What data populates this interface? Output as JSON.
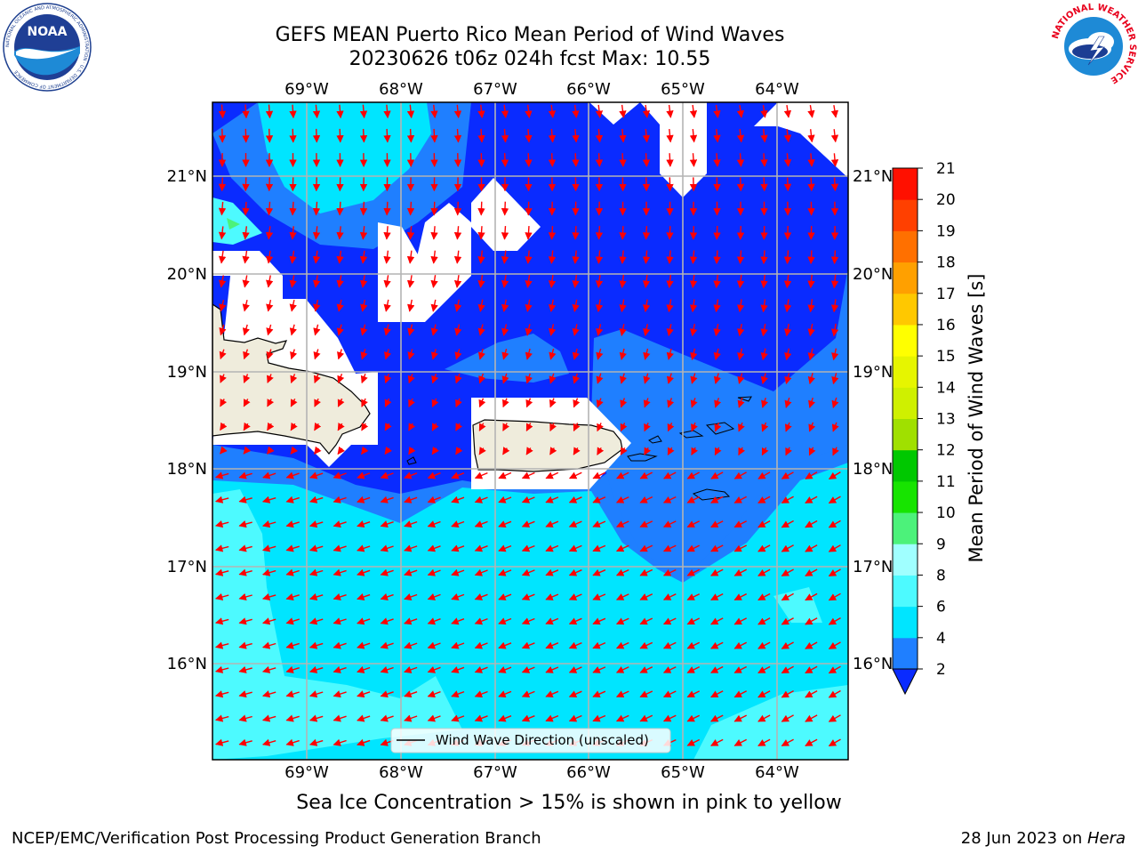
{
  "title": {
    "line1": "GEFS MEAN Puerto Rico Mean Period of Wind Waves",
    "line2": "20230626 t06z 024h fcst   Max: 10.55"
  },
  "map": {
    "lon_labels": [
      "69°W",
      "68°W",
      "67°W",
      "66°W",
      "65°W",
      "64°W"
    ],
    "lat_labels": [
      "21°N",
      "20°N",
      "19°N",
      "18°N",
      "17°N",
      "16°N"
    ],
    "legend_label": "Wind Wave Direction (unscaled)",
    "land_color": "#efecdc",
    "arrow_color": "#ff0000"
  },
  "colorbar": {
    "label": "Mean Period of Wind Waves [s]",
    "ticks": [
      "2",
      "4",
      "6",
      "8",
      "9",
      "10",
      "11",
      "12",
      "13",
      "14",
      "15",
      "16",
      "17",
      "18",
      "19",
      "20",
      "21"
    ],
    "colors": [
      "#0a2bff",
      "#1f7fff",
      "#00e5ff",
      "#4dfaff",
      "#a0ffff",
      "#4cf27a",
      "#17e400",
      "#00c800",
      "#a0e000",
      "#cff000",
      "#e6f500",
      "#ffff00",
      "#ffc800",
      "#ffa000",
      "#ff7000",
      "#ff4000",
      "#ff1000",
      "#ff0000"
    ]
  },
  "note": "Sea Ice Concentration > 15% is shown in pink to yellow",
  "footer": {
    "left": "NCEP/EMC/Verification Post Processing Product Generation Branch",
    "date": "28 Jun 2023 on ",
    "machine": "Hera"
  },
  "logos": {
    "noaa_text": "NOAA",
    "noaa_ring": "NATIONAL OCEANIC AND ATMOSPHERIC ADMINISTRATION · U.S. DEPARTMENT OF COMMERCE",
    "nws_ring": "NATIONAL WEATHER SERVICE"
  }
}
